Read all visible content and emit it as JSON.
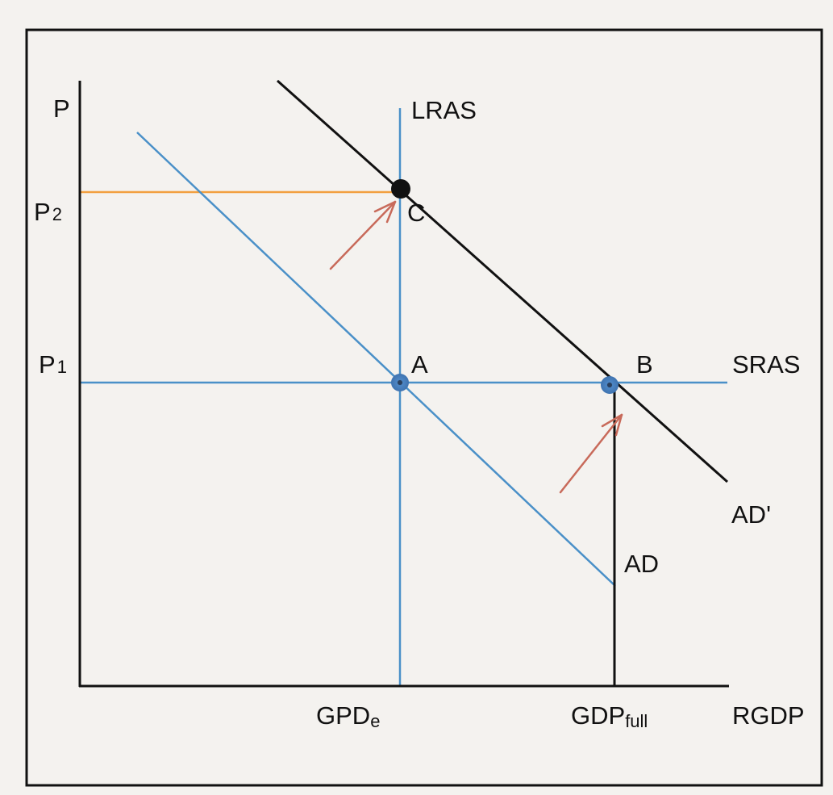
{
  "diagram": {
    "axes": {
      "y_label": "P",
      "x_label": "RGDP"
    },
    "price_levels": {
      "p2": {
        "base": "P",
        "sub": "2"
      },
      "p1": {
        "base": "P",
        "sub": "1"
      }
    },
    "output_levels": {
      "equilibrium": {
        "base": "GPD",
        "sub": "e"
      },
      "full": {
        "base": "GDP",
        "sub": "full"
      }
    },
    "curves": {
      "lras": "LRAS",
      "sras": "SRAS",
      "ad": "AD",
      "ad_prime": "AD'"
    },
    "points": {
      "a": "A",
      "b": "B",
      "c": "C"
    },
    "colors": {
      "axis": "#111111",
      "blue_curve": "#4a90c8",
      "ad_prime": "#111111",
      "p2_guide": "#f2a040",
      "arrow": "#c86a5a",
      "point_blue": "#3f73b0",
      "point_black": "#111111",
      "frame": "#111111",
      "paper": "#f4f2ef"
    }
  }
}
